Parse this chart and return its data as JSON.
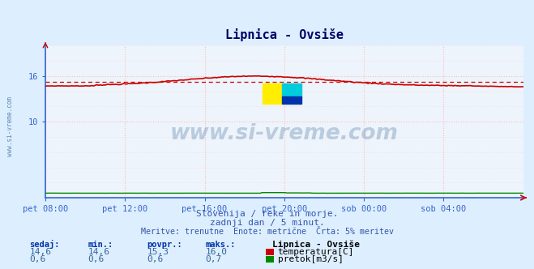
{
  "title": "Lipnica - Ovsiše",
  "bg_color": "#ddeeff",
  "plot_bg_color": "#eef4fb",
  "grid_color": "#ffbbbb",
  "grid_color_h": "#ffbbbb",
  "spine_color": "#3366cc",
  "x_labels": [
    "pet 08:00",
    "pet 12:00",
    "pet 16:00",
    "pet 20:00",
    "sob 00:00",
    "sob 04:00"
  ],
  "x_ticks_norm": [
    0.0,
    0.1667,
    0.3333,
    0.5,
    0.6667,
    0.8333
  ],
  "y_min": 0,
  "y_max": 20,
  "y_ticks": [
    10,
    16
  ],
  "temp_avg": 15.3,
  "temp_color": "#cc0000",
  "flow_color": "#008800",
  "watermark": "www.si-vreme.com",
  "watermark_color": "#336699",
  "subtitle1": "Slovenija / reke in morje.",
  "subtitle2": "zadnji dan / 5 minut.",
  "subtitle3": "Meritve: trenutne  Enote: metrične  Črta: 5% meritev",
  "legend_title": "Lipnica - Ovsiše",
  "legend_row1_label": "temperatura[C]",
  "legend_row2_label": "pretok[m3/s]",
  "legend_row1_values": [
    "14,6",
    "14,6",
    "15,3",
    "16,0"
  ],
  "legend_row2_values": [
    "0,6",
    "0,6",
    "0,6",
    "0,7"
  ],
  "legend_headers": [
    "sedaj:",
    "min.:",
    "povpr.:",
    "maks.:"
  ],
  "sidebar_text": "www.si-vreme.com",
  "n_points": 288,
  "text_color": "#3355aa"
}
